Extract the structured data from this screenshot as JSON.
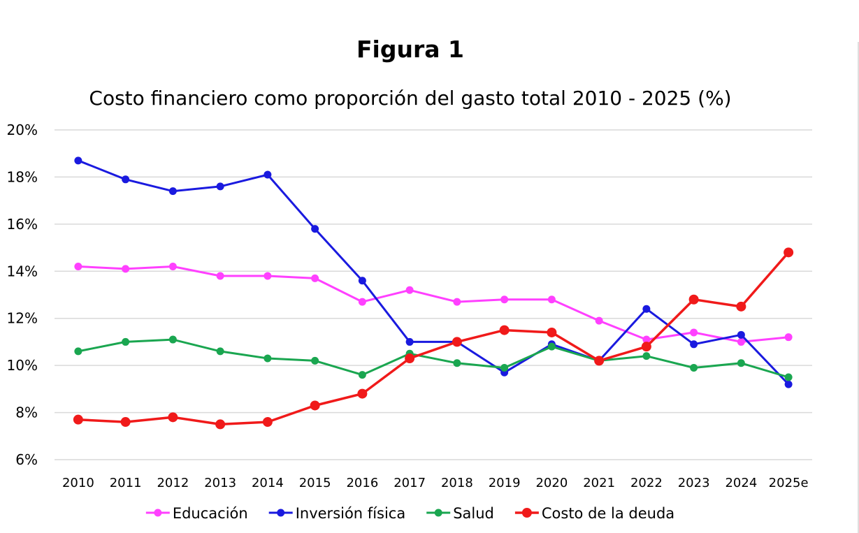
{
  "figure_label": "Figura 1",
  "chart_data": {
    "type": "line",
    "title": "Costo financiero como proporción del gasto total 2010 - 2025 (%)",
    "xlabel": "",
    "ylabel": "",
    "ylim": [
      6,
      20
    ],
    "y_ticks": [
      "20%",
      "18%",
      "16%",
      "14%",
      "12%",
      "10%",
      "8%",
      "6%"
    ],
    "y_tick_values": [
      20,
      18,
      16,
      14,
      12,
      10,
      8,
      6
    ],
    "grid": true,
    "legend_position": "bottom",
    "categories": [
      "2010",
      "2011",
      "2012",
      "2013",
      "2014",
      "2015",
      "2016",
      "2017",
      "2018",
      "2019",
      "2020",
      "2021",
      "2022",
      "2023",
      "2024",
      "2025e"
    ],
    "series": [
      {
        "name": "Educación",
        "color": "#ff40ff",
        "marker_size": "small",
        "values": [
          14.2,
          14.1,
          14.2,
          13.8,
          13.8,
          13.7,
          12.7,
          13.2,
          12.7,
          12.8,
          12.8,
          11.9,
          11.1,
          11.4,
          11.0,
          11.2
        ]
      },
      {
        "name": "Inversión física",
        "color": "#1a1adf",
        "marker_size": "small",
        "values": [
          18.7,
          17.9,
          17.4,
          17.6,
          18.1,
          15.8,
          13.6,
          11.0,
          11.0,
          9.7,
          10.9,
          10.2,
          12.4,
          10.9,
          11.3,
          9.2
        ]
      },
      {
        "name": "Salud",
        "color": "#1aa650",
        "marker_size": "small",
        "values": [
          10.6,
          11.0,
          11.1,
          10.6,
          10.3,
          10.2,
          9.6,
          10.5,
          10.1,
          9.9,
          10.8,
          10.2,
          10.4,
          9.9,
          10.1,
          9.5
        ]
      },
      {
        "name": "Costo de la deuda",
        "color": "#f01a1a",
        "marker_size": "large",
        "values": [
          7.7,
          7.6,
          7.8,
          7.5,
          7.6,
          8.3,
          8.8,
          10.3,
          11.0,
          11.5,
          11.4,
          10.2,
          10.8,
          12.8,
          12.5,
          14.8
        ]
      }
    ]
  }
}
